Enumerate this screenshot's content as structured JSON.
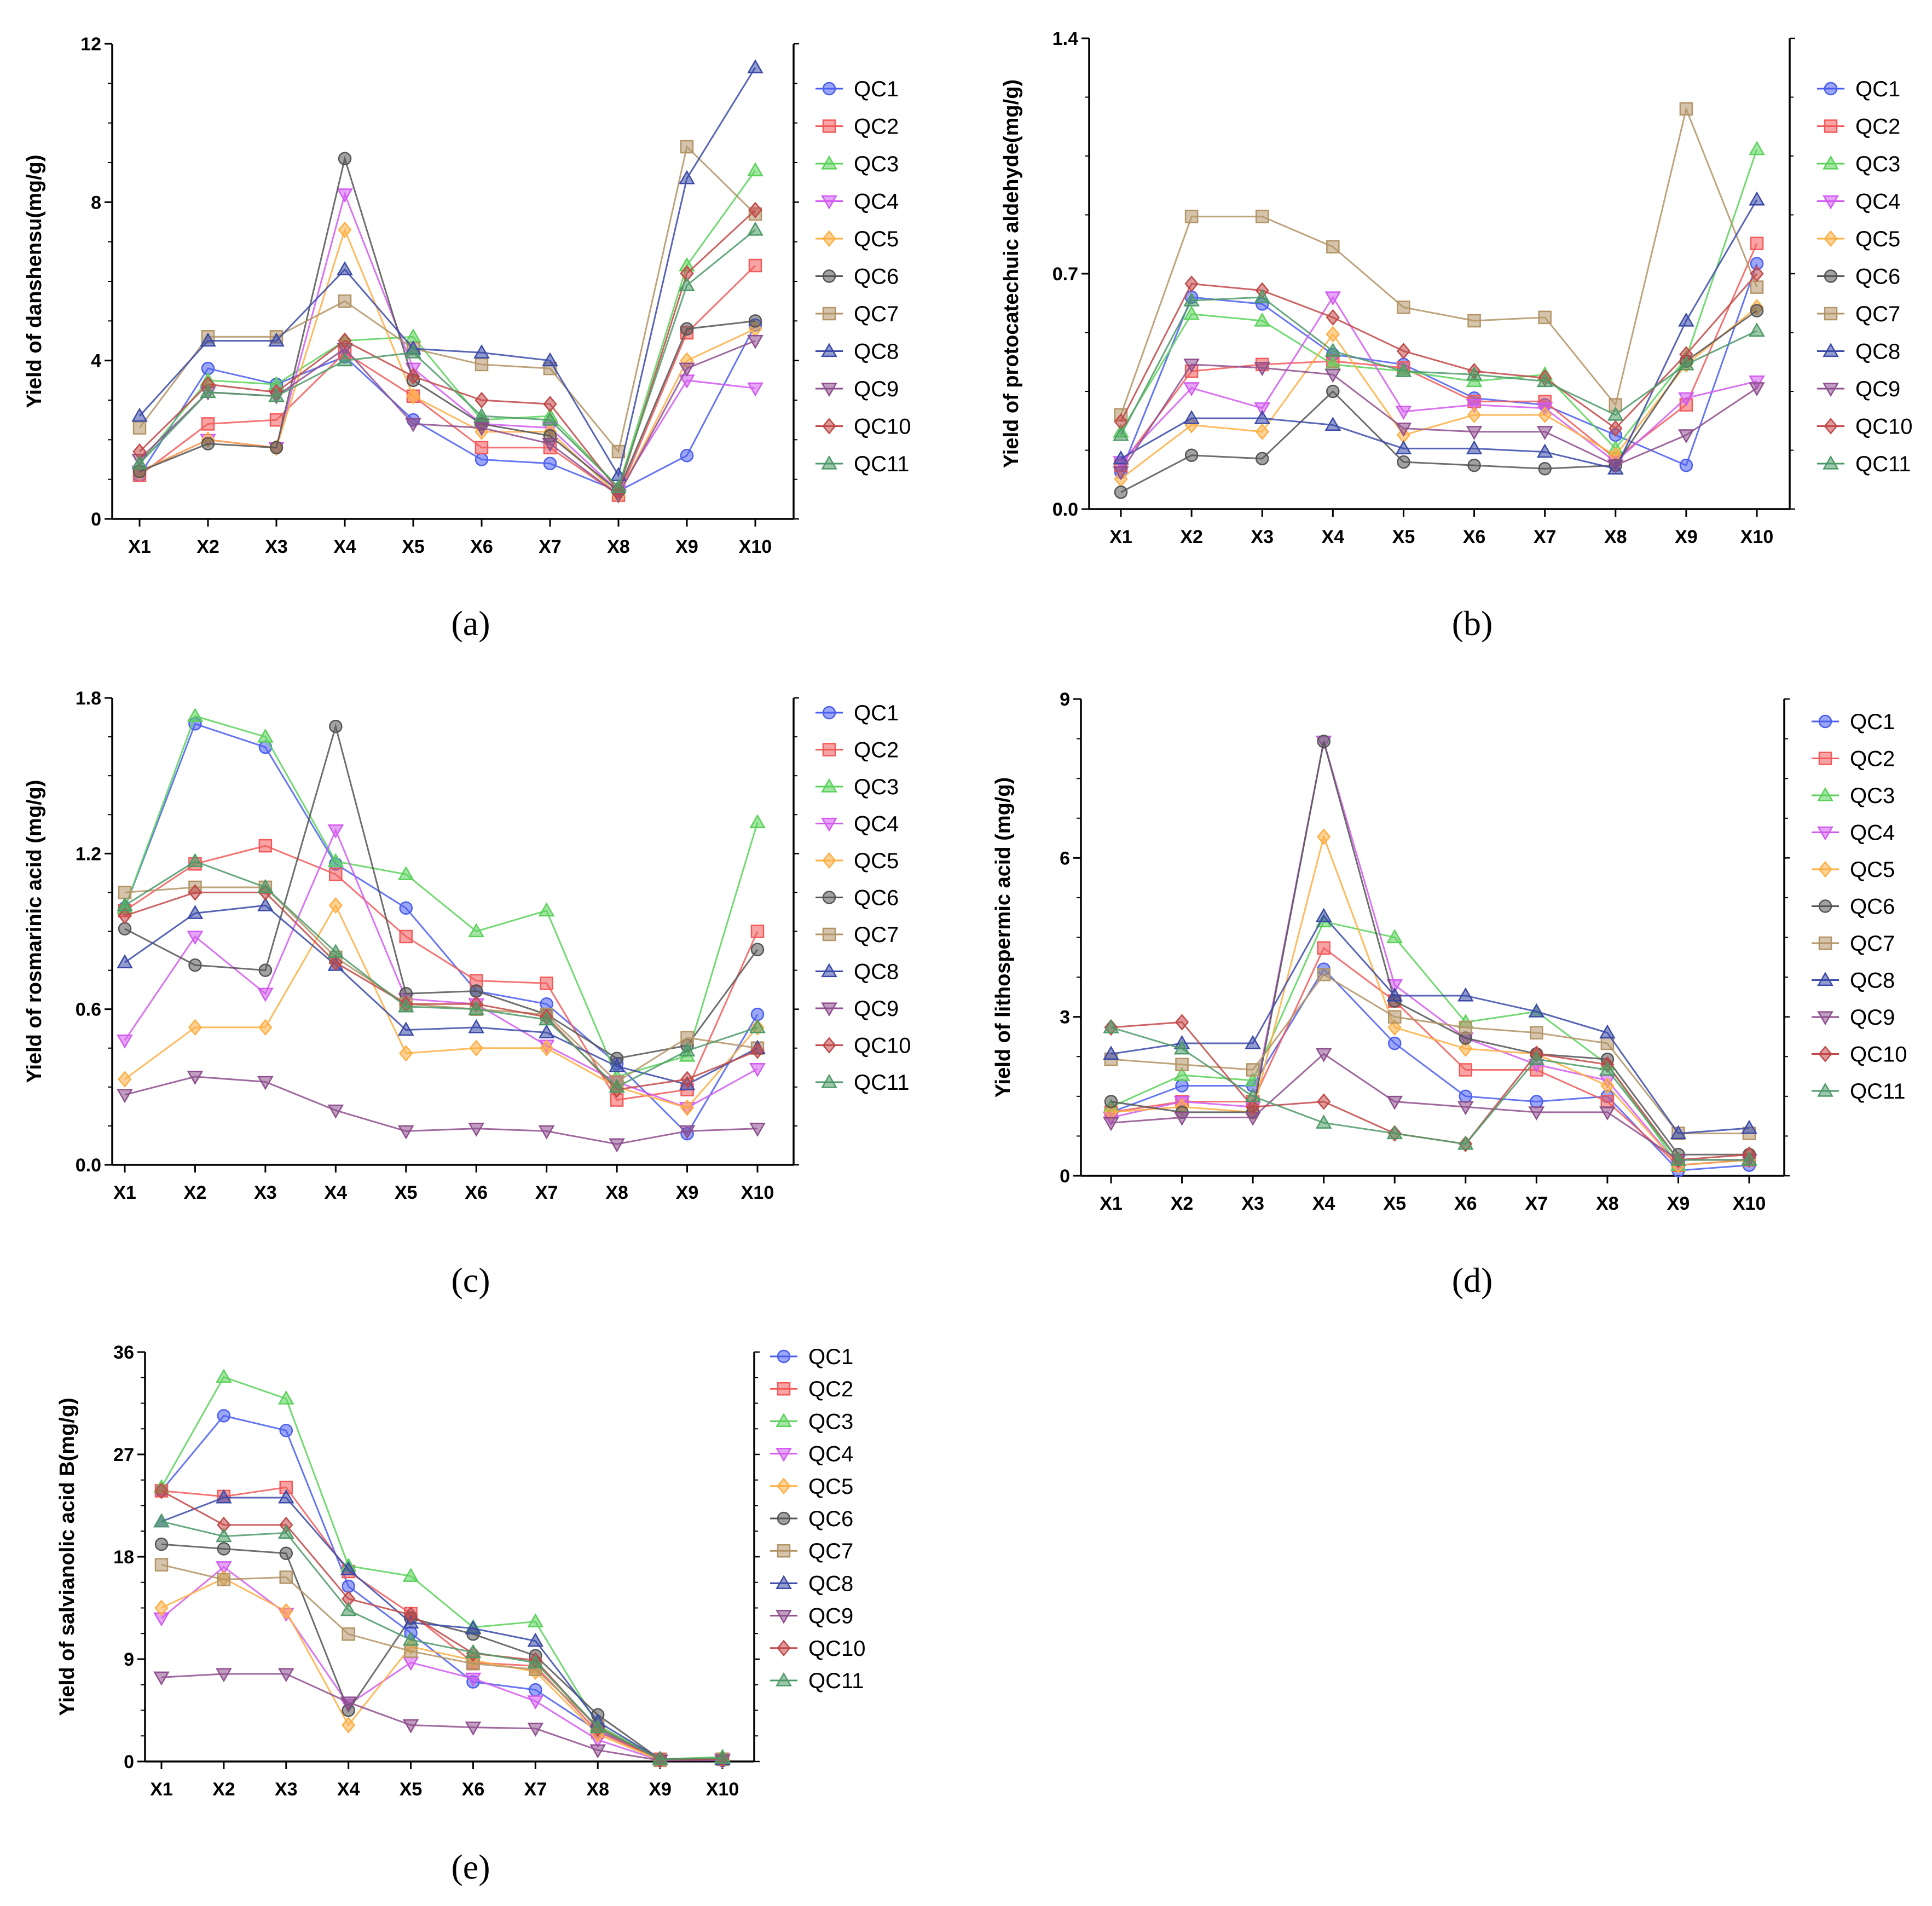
{
  "figure": {
    "x_categories": [
      "X1",
      "X2",
      "X3",
      "X4",
      "X5",
      "X6",
      "X7",
      "X8",
      "X9",
      "X10"
    ],
    "legend": [
      "QC1",
      "QC2",
      "QC3",
      "QC4",
      "QC5",
      "QC6",
      "QC7",
      "QC8",
      "QC9",
      "QC10",
      "QC11"
    ],
    "series_colors": [
      "#4a5ef0",
      "#f25a5a",
      "#5ad25a",
      "#d25af0",
      "#ffae42",
      "#555555",
      "#b39466",
      "#3b4aa8",
      "#8e4f8e",
      "#c24848",
      "#4d9a68"
    ],
    "series_markers": [
      "circle",
      "square",
      "triangle-up",
      "triangle-down",
      "diamond",
      "circle",
      "square",
      "triangle-up",
      "triangle-down",
      "diamond",
      "triangle-up"
    ]
  },
  "chart_data": [
    {
      "type": "line",
      "panel_label": "(a)",
      "ylabel": "Yield of danshensu(mg/g)",
      "xlabel": "",
      "categories": [
        "X1",
        "X2",
        "X3",
        "X4",
        "X5",
        "X6",
        "X7",
        "X8",
        "X9",
        "X10"
      ],
      "ylim": [
        0,
        12
      ],
      "yticks": [
        0,
        4,
        8,
        12
      ],
      "legend_position": "right",
      "series": [
        {
          "name": "QC1",
          "values": [
            1.1,
            3.8,
            3.4,
            4.1,
            2.5,
            1.5,
            1.4,
            0.7,
            1.6,
            4.9
          ]
        },
        {
          "name": "QC2",
          "values": [
            1.1,
            2.4,
            2.5,
            4.2,
            3.1,
            1.8,
            1.8,
            0.6,
            4.7,
            6.4
          ]
        },
        {
          "name": "QC3",
          "values": [
            1.4,
            3.5,
            3.4,
            4.5,
            4.6,
            2.5,
            2.6,
            0.8,
            6.4,
            8.8
          ]
        },
        {
          "name": "QC4",
          "values": [
            1.2,
            2.0,
            1.8,
            8.2,
            3.8,
            2.4,
            2.3,
            0.7,
            3.5,
            3.3
          ]
        },
        {
          "name": "QC5",
          "values": [
            1.2,
            2.0,
            1.8,
            7.3,
            3.1,
            2.2,
            2.2,
            0.6,
            4.0,
            4.8
          ]
        },
        {
          "name": "QC6",
          "values": [
            1.2,
            1.9,
            1.8,
            9.1,
            3.5,
            2.4,
            2.1,
            0.7,
            4.8,
            5.0
          ]
        },
        {
          "name": "QC7",
          "values": [
            2.3,
            4.6,
            4.6,
            5.5,
            4.3,
            3.9,
            3.8,
            1.7,
            9.4,
            7.7
          ]
        },
        {
          "name": "QC8",
          "values": [
            2.6,
            4.5,
            4.5,
            6.3,
            4.3,
            4.2,
            4.0,
            1.1,
            8.6,
            11.4
          ]
        },
        {
          "name": "QC9",
          "values": [
            1.5,
            3.2,
            3.1,
            4.3,
            2.4,
            2.3,
            1.9,
            0.6,
            3.8,
            4.5
          ]
        },
        {
          "name": "QC10",
          "values": [
            1.7,
            3.4,
            3.2,
            4.5,
            3.6,
            3.0,
            2.9,
            0.7,
            6.2,
            7.8
          ]
        },
        {
          "name": "QC11",
          "values": [
            1.4,
            3.2,
            3.1,
            4.0,
            4.2,
            2.6,
            2.5,
            0.8,
            5.9,
            7.3
          ]
        }
      ]
    },
    {
      "type": "line",
      "panel_label": "(b)",
      "ylabel": "Yield of protocatechuic aldehyde(mg/g)",
      "xlabel": "",
      "categories": [
        "X1",
        "X2",
        "X3",
        "X4",
        "X5",
        "X6",
        "X7",
        "X8",
        "X9",
        "X10"
      ],
      "ylim": [
        0,
        1.4
      ],
      "yticks": [
        0.0,
        0.7,
        1.4
      ],
      "legend_position": "right",
      "series": [
        {
          "name": "QC1",
          "values": [
            0.11,
            0.63,
            0.61,
            0.46,
            0.43,
            0.33,
            0.31,
            0.22,
            0.13,
            0.73
          ]
        },
        {
          "name": "QC2",
          "values": [
            0.13,
            0.41,
            0.43,
            0.44,
            0.42,
            0.32,
            0.32,
            0.15,
            0.31,
            0.79
          ]
        },
        {
          "name": "QC3",
          "values": [
            0.23,
            0.58,
            0.56,
            0.43,
            0.41,
            0.38,
            0.4,
            0.18,
            0.45,
            1.07
          ]
        },
        {
          "name": "QC4",
          "values": [
            0.14,
            0.36,
            0.3,
            0.63,
            0.29,
            0.31,
            0.3,
            0.14,
            0.33,
            0.38
          ]
        },
        {
          "name": "QC5",
          "values": [
            0.09,
            0.25,
            0.23,
            0.52,
            0.22,
            0.28,
            0.28,
            0.16,
            0.43,
            0.6
          ]
        },
        {
          "name": "QC6",
          "values": [
            0.05,
            0.16,
            0.15,
            0.35,
            0.14,
            0.13,
            0.12,
            0.13,
            0.44,
            0.59
          ]
        },
        {
          "name": "QC7",
          "values": [
            0.28,
            0.87,
            0.87,
            0.78,
            0.6,
            0.56,
            0.57,
            0.31,
            1.19,
            0.66
          ]
        },
        {
          "name": "QC8",
          "values": [
            0.15,
            0.27,
            0.27,
            0.25,
            0.18,
            0.18,
            0.17,
            0.12,
            0.56,
            0.92
          ]
        },
        {
          "name": "QC9",
          "values": [
            0.11,
            0.43,
            0.42,
            0.4,
            0.24,
            0.23,
            0.23,
            0.13,
            0.22,
            0.36
          ]
        },
        {
          "name": "QC10",
          "values": [
            0.26,
            0.67,
            0.65,
            0.57,
            0.47,
            0.41,
            0.39,
            0.24,
            0.46,
            0.7
          ]
        },
        {
          "name": "QC11",
          "values": [
            0.22,
            0.62,
            0.63,
            0.47,
            0.41,
            0.4,
            0.38,
            0.28,
            0.43,
            0.53
          ]
        }
      ]
    },
    {
      "type": "line",
      "panel_label": "(c)",
      "ylabel": "Yield of rosmarinic acid (mg/g)",
      "xlabel": "",
      "categories": [
        "X1",
        "X2",
        "X3",
        "X4",
        "X5",
        "X6",
        "X7",
        "X8",
        "X9",
        "X10"
      ],
      "ylim": [
        0,
        1.8
      ],
      "yticks": [
        0.0,
        0.6,
        1.2,
        1.8
      ],
      "legend_position": "right",
      "series": [
        {
          "name": "QC1",
          "values": [
            0.99,
            1.7,
            1.61,
            1.16,
            0.99,
            0.67,
            0.62,
            0.39,
            0.12,
            0.58
          ]
        },
        {
          "name": "QC2",
          "values": [
            0.98,
            1.16,
            1.23,
            1.12,
            0.88,
            0.71,
            0.7,
            0.25,
            0.29,
            0.9
          ]
        },
        {
          "name": "QC3",
          "values": [
            0.99,
            1.73,
            1.65,
            1.17,
            1.12,
            0.9,
            0.98,
            0.34,
            0.42,
            1.32
          ]
        },
        {
          "name": "QC4",
          "values": [
            0.48,
            0.88,
            0.66,
            1.29,
            0.64,
            0.62,
            0.46,
            0.32,
            0.22,
            0.37
          ]
        },
        {
          "name": "QC5",
          "values": [
            0.33,
            0.53,
            0.53,
            1.0,
            0.43,
            0.45,
            0.45,
            0.3,
            0.22,
            0.53
          ]
        },
        {
          "name": "QC6",
          "values": [
            0.91,
            0.77,
            0.75,
            1.69,
            0.66,
            0.67,
            0.58,
            0.41,
            0.46,
            0.83
          ]
        },
        {
          "name": "QC7",
          "values": [
            1.05,
            1.07,
            1.07,
            0.8,
            0.62,
            0.6,
            0.58,
            0.32,
            0.49,
            0.45
          ]
        },
        {
          "name": "QC8",
          "values": [
            0.78,
            0.97,
            1.0,
            0.77,
            0.52,
            0.53,
            0.51,
            0.38,
            0.31,
            0.45
          ]
        },
        {
          "name": "QC9",
          "values": [
            0.27,
            0.34,
            0.32,
            0.21,
            0.13,
            0.14,
            0.13,
            0.08,
            0.13,
            0.14
          ]
        },
        {
          "name": "QC10",
          "values": [
            0.96,
            1.05,
            1.05,
            0.78,
            0.62,
            0.62,
            0.57,
            0.29,
            0.33,
            0.44
          ]
        },
        {
          "name": "QC11",
          "values": [
            1.0,
            1.17,
            1.07,
            0.82,
            0.61,
            0.6,
            0.56,
            0.3,
            0.44,
            0.53
          ]
        }
      ]
    },
    {
      "type": "line",
      "panel_label": "(d)",
      "ylabel": "Yield of lithospermic acid (mg/g)",
      "xlabel": "",
      "categories": [
        "X1",
        "X2",
        "X3",
        "X4",
        "X5",
        "X6",
        "X7",
        "X8",
        "X9",
        "X10"
      ],
      "ylim": [
        0,
        9
      ],
      "yticks": [
        0,
        3,
        6,
        9
      ],
      "legend_position": "right",
      "series": [
        {
          "name": "QC1",
          "values": [
            1.2,
            1.7,
            1.7,
            3.9,
            2.5,
            1.5,
            1.4,
            1.5,
            0.1,
            0.2
          ]
        },
        {
          "name": "QC2",
          "values": [
            1.2,
            1.4,
            1.4,
            4.3,
            3.3,
            2.0,
            2.0,
            1.4,
            0.2,
            0.3
          ]
        },
        {
          "name": "QC3",
          "values": [
            1.3,
            1.9,
            1.8,
            4.8,
            4.5,
            2.9,
            3.1,
            2.1,
            0.2,
            0.3
          ]
        },
        {
          "name": "QC4",
          "values": [
            1.1,
            1.4,
            1.3,
            8.2,
            3.6,
            2.6,
            2.1,
            1.8,
            0.2,
            0.3
          ]
        },
        {
          "name": "QC5",
          "values": [
            1.2,
            1.3,
            1.2,
            6.4,
            2.8,
            2.4,
            2.3,
            1.7,
            0.2,
            0.3
          ]
        },
        {
          "name": "QC6",
          "values": [
            1.4,
            1.2,
            1.2,
            8.2,
            3.3,
            2.6,
            2.3,
            2.2,
            0.4,
            0.4
          ]
        },
        {
          "name": "QC7",
          "values": [
            2.2,
            2.1,
            2.0,
            3.8,
            3.0,
            2.8,
            2.7,
            2.5,
            0.8,
            0.8
          ]
        },
        {
          "name": "QC8",
          "values": [
            2.3,
            2.5,
            2.5,
            4.9,
            3.4,
            3.4,
            3.1,
            2.7,
            0.8,
            0.9
          ]
        },
        {
          "name": "QC9",
          "values": [
            1.0,
            1.1,
            1.1,
            2.3,
            1.4,
            1.3,
            1.2,
            1.2,
            0.3,
            0.3
          ]
        },
        {
          "name": "QC10",
          "values": [
            2.8,
            2.9,
            1.3,
            1.4,
            0.8,
            0.6,
            2.3,
            2.1,
            0.3,
            0.4
          ]
        },
        {
          "name": "QC11",
          "values": [
            2.8,
            2.4,
            1.5,
            1.0,
            0.8,
            0.6,
            2.2,
            2.0,
            0.3,
            0.3
          ]
        }
      ]
    },
    {
      "type": "line",
      "panel_label": "(e)",
      "ylabel": "Yield of salvianolic acid B(mg/g)",
      "xlabel": "",
      "categories": [
        "X1",
        "X2",
        "X3",
        "X4",
        "X5",
        "X6",
        "X7",
        "X8",
        "X9",
        "X10"
      ],
      "ylim": [
        0,
        36
      ],
      "yticks": [
        0,
        9,
        18,
        27,
        36
      ],
      "legend_position": "right",
      "series": [
        {
          "name": "QC1",
          "values": [
            23.8,
            30.4,
            29.1,
            15.4,
            11.3,
            7.0,
            6.3,
            2.7,
            0.2,
            0.1
          ]
        },
        {
          "name": "QC2",
          "values": [
            23.8,
            23.3,
            24.1,
            16.7,
            13.0,
            8.7,
            8.4,
            2.6,
            0.2,
            0.2
          ]
        },
        {
          "name": "QC3",
          "values": [
            24.1,
            33.8,
            31.9,
            17.2,
            16.3,
            11.8,
            12.3,
            3.2,
            0.2,
            0.4
          ]
        },
        {
          "name": "QC4",
          "values": [
            12.6,
            17.1,
            13.0,
            5.0,
            8.7,
            7.3,
            5.3,
            1.9,
            0.1,
            0.2
          ]
        },
        {
          "name": "QC5",
          "values": [
            13.5,
            16.1,
            13.2,
            3.2,
            10.1,
            8.9,
            7.9,
            2.4,
            0.1,
            0.2
          ]
        },
        {
          "name": "QC6",
          "values": [
            19.1,
            18.7,
            18.3,
            4.5,
            12.6,
            11.2,
            9.3,
            4.1,
            0.2,
            0.2
          ]
        },
        {
          "name": "QC7",
          "values": [
            17.3,
            16.0,
            16.2,
            11.2,
            9.7,
            8.6,
            8.1,
            3.1,
            0.1,
            0.2
          ]
        },
        {
          "name": "QC8",
          "values": [
            21.1,
            23.2,
            23.2,
            16.9,
            12.2,
            11.7,
            10.6,
            3.5,
            0.2,
            0.2
          ]
        },
        {
          "name": "QC9",
          "values": [
            7.4,
            7.7,
            7.7,
            5.2,
            3.2,
            3.0,
            2.9,
            1.0,
            0.1,
            0.1
          ]
        },
        {
          "name": "QC10",
          "values": [
            23.8,
            20.8,
            20.8,
            14.3,
            12.9,
            9.5,
            8.9,
            2.9,
            0.2,
            0.2
          ]
        },
        {
          "name": "QC11",
          "values": [
            21.1,
            19.8,
            20.1,
            13.3,
            10.7,
            9.6,
            8.7,
            3.0,
            0.2,
            0.3
          ]
        }
      ]
    }
  ]
}
